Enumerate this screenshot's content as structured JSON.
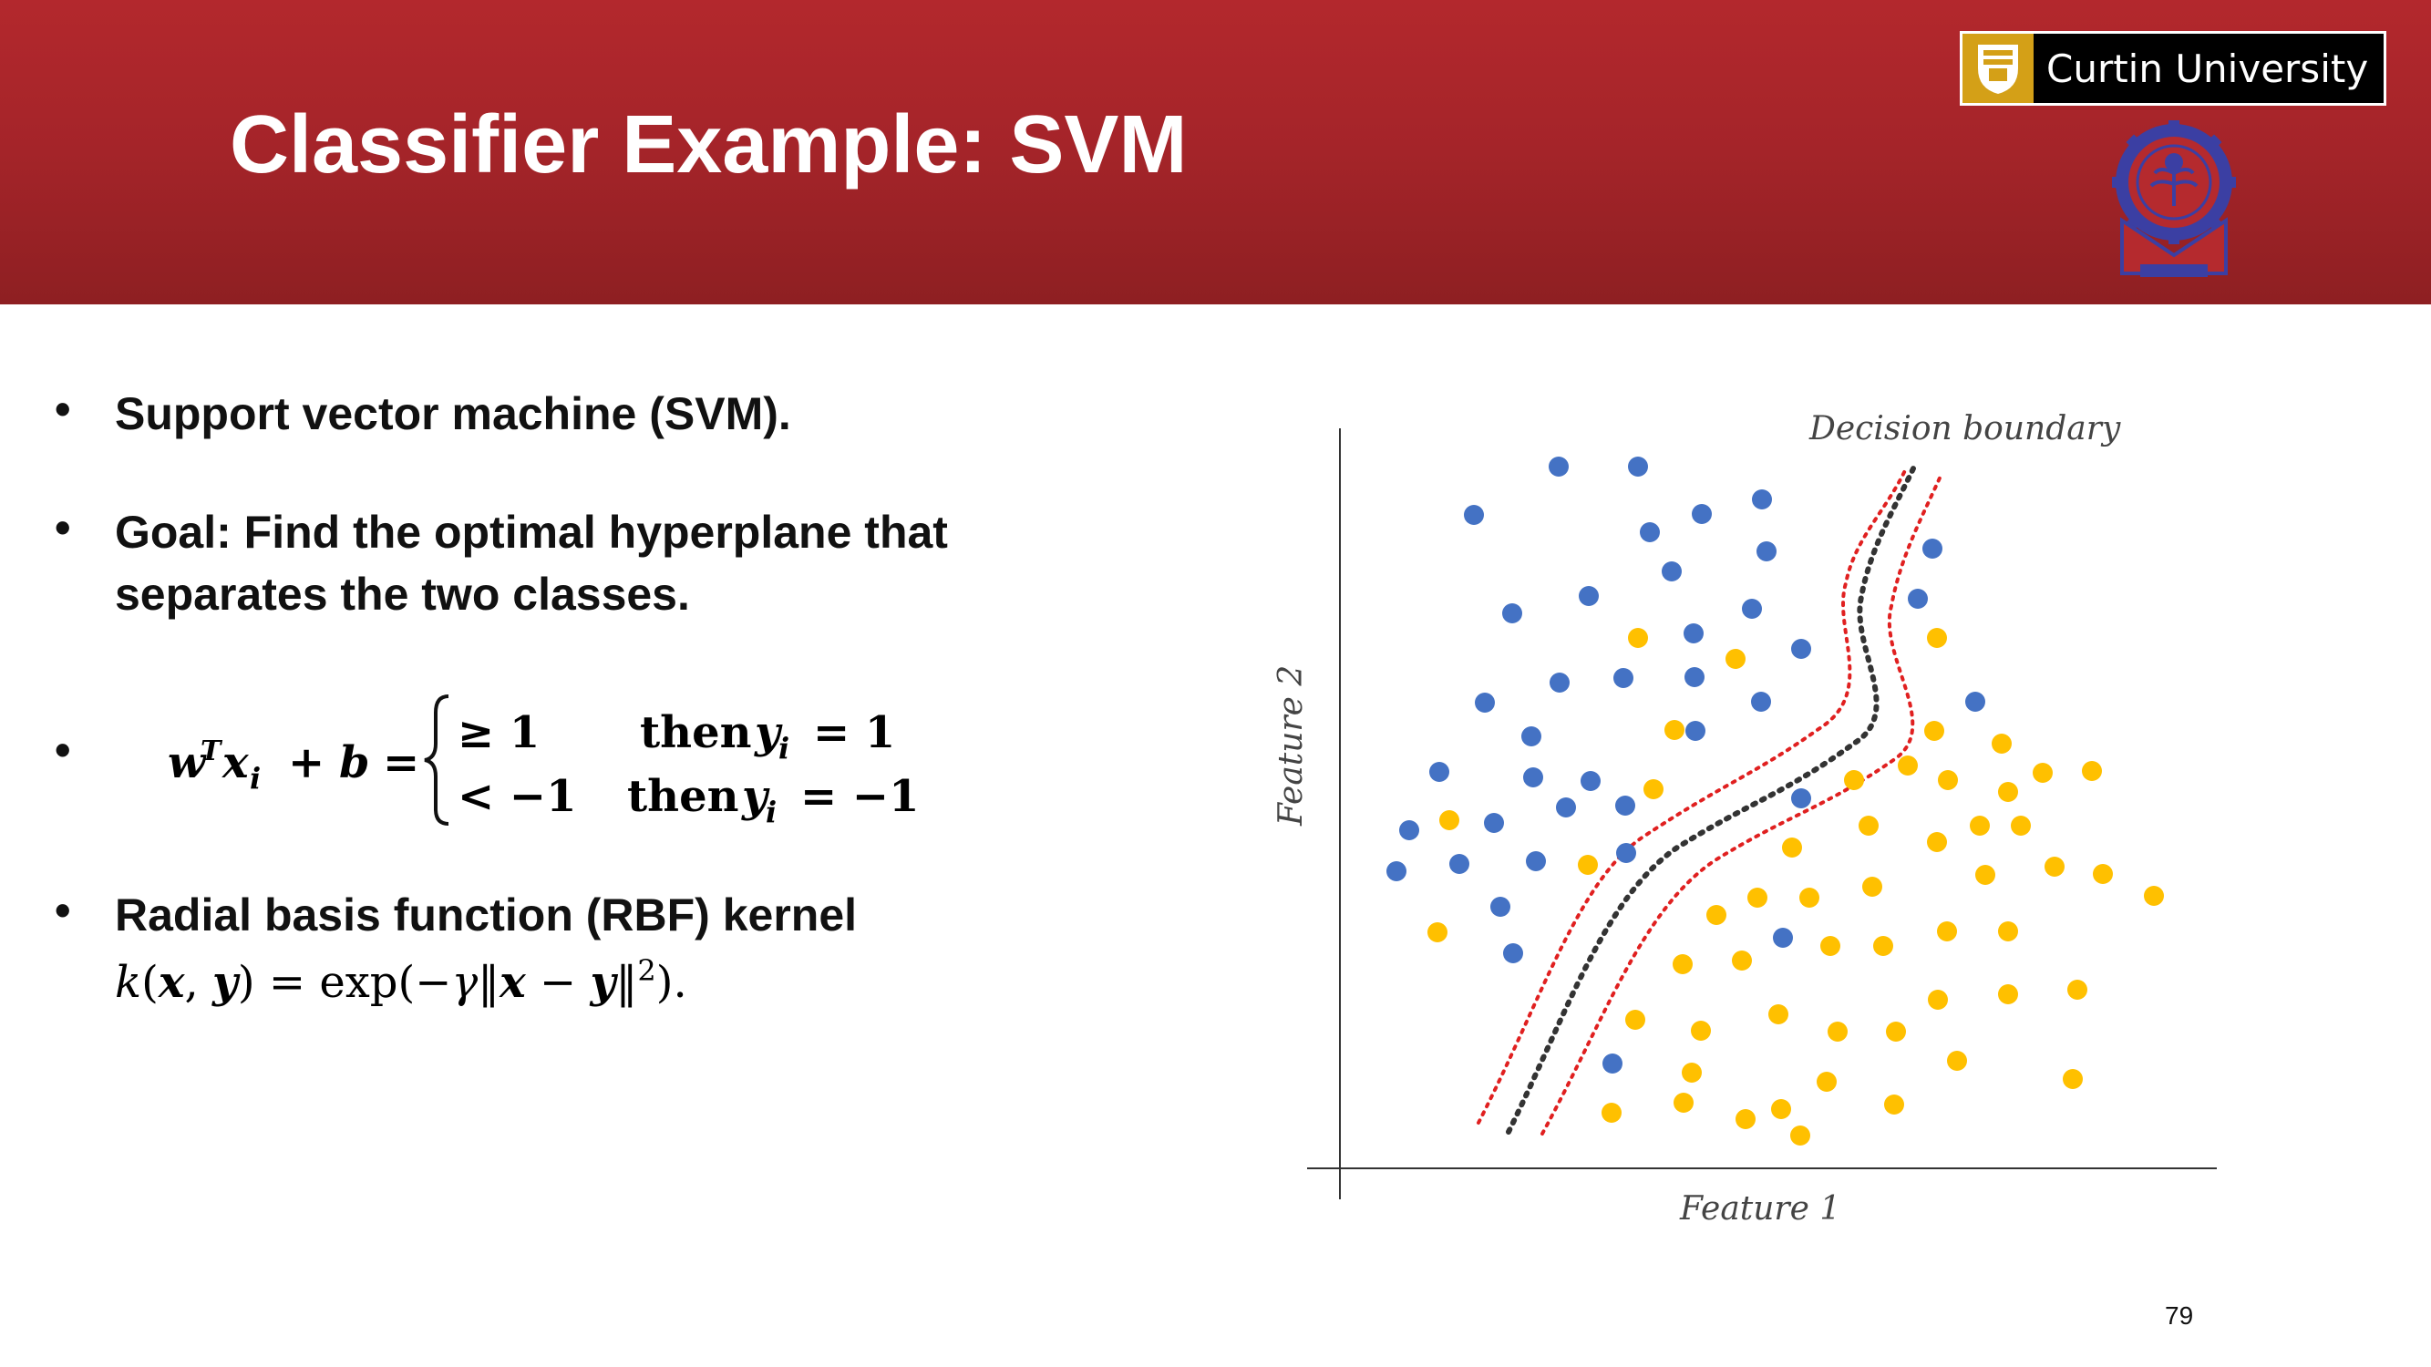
{
  "slide": {
    "title": "Classifier Example: SVM",
    "logo_text": "Curtin University",
    "page_number": "79"
  },
  "bullets": [
    {
      "text": "Support vector machine (SVM)."
    },
    {
      "text": "Goal: Find the optimal hyperplane that",
      "text2": "separates the two classes."
    },
    {
      "case1_cond": "≥ 1",
      "case1_then": "then",
      "case1_val": "= 1",
      "case2_cond": "< −1",
      "case2_then": "then",
      "case2_val": "= −1"
    },
    {
      "text": "Radial basis function (RBF) kernel"
    }
  ],
  "figure": {
    "label_boundary": "Decision boundary",
    "label_x": "Feature 1",
    "label_y": "Feature 2",
    "colors": {
      "blue": "#4472c4",
      "yellow": "#ffc000",
      "boundary": "#222222",
      "margin": "#e02020"
    }
  },
  "chart_data": {
    "type": "scatter",
    "xlabel": "Feature 1",
    "ylabel": "Feature 2",
    "annotation": "Decision boundary",
    "series": [
      {
        "color": "blue",
        "values": [
          [
            1710,
            512
          ],
          [
            1797,
            512
          ],
          [
            1617,
            565
          ],
          [
            1810,
            584
          ],
          [
            1867,
            564
          ],
          [
            1933,
            548
          ],
          [
            1938,
            605
          ],
          [
            1659,
            673
          ],
          [
            1743,
            654
          ],
          [
            1834,
            627
          ],
          [
            1922,
            668
          ],
          [
            1858,
            695
          ],
          [
            1976,
            712
          ],
          [
            2120,
            602
          ],
          [
            2104,
            657
          ],
          [
            1711,
            749
          ],
          [
            1781,
            744
          ],
          [
            1629,
            771
          ],
          [
            1680,
            808
          ],
          [
            1859,
            743
          ],
          [
            1932,
            770
          ],
          [
            1860,
            802
          ],
          [
            2167,
            770
          ],
          [
            1579,
            847
          ],
          [
            1682,
            853
          ],
          [
            1745,
            857
          ],
          [
            1639,
            903
          ],
          [
            1718,
            886
          ],
          [
            1783,
            884
          ],
          [
            1546,
            911
          ],
          [
            1601,
            948
          ],
          [
            1685,
            945
          ],
          [
            1532,
            956
          ],
          [
            1646,
            995
          ],
          [
            1660,
            1046
          ],
          [
            1784,
            936
          ],
          [
            1976,
            876
          ],
          [
            1956,
            1029
          ],
          [
            1769,
            1167
          ]
        ]
      },
      {
        "color": "yellow",
        "values": [
          [
            1797,
            700
          ],
          [
            1904,
            723
          ],
          [
            2125,
            700
          ],
          [
            1837,
            801
          ],
          [
            2122,
            802
          ],
          [
            2196,
            816
          ],
          [
            2093,
            840
          ],
          [
            2034,
            856
          ],
          [
            2137,
            856
          ],
          [
            2241,
            848
          ],
          [
            2295,
            846
          ],
          [
            2203,
            869
          ],
          [
            1814,
            866
          ],
          [
            1590,
            900
          ],
          [
            2050,
            906
          ],
          [
            2125,
            924
          ],
          [
            2172,
            906
          ],
          [
            2217,
            906
          ],
          [
            1742,
            949
          ],
          [
            1966,
            930
          ],
          [
            2254,
            951
          ],
          [
            2178,
            960
          ],
          [
            1928,
            985
          ],
          [
            1985,
            985
          ],
          [
            2054,
            973
          ],
          [
            2307,
            959
          ],
          [
            1883,
            1004
          ],
          [
            2363,
            983
          ],
          [
            1577,
            1023
          ],
          [
            1846,
            1058
          ],
          [
            1911,
            1054
          ],
          [
            2008,
            1038
          ],
          [
            2066,
            1038
          ],
          [
            2136,
            1022
          ],
          [
            2203,
            1022
          ],
          [
            2279,
            1086
          ],
          [
            1794,
            1119
          ],
          [
            1866,
            1131
          ],
          [
            1951,
            1113
          ],
          [
            2016,
            1132
          ],
          [
            2080,
            1132
          ],
          [
            2126,
            1097
          ],
          [
            2203,
            1091
          ],
          [
            1856,
            1177
          ],
          [
            2004,
            1187
          ],
          [
            2147,
            1164
          ],
          [
            2274,
            1184
          ],
          [
            1768,
            1221
          ],
          [
            1847,
            1210
          ],
          [
            1915,
            1228
          ],
          [
            1954,
            1217
          ],
          [
            2078,
            1212
          ],
          [
            1975,
            1246
          ]
        ]
      }
    ]
  }
}
